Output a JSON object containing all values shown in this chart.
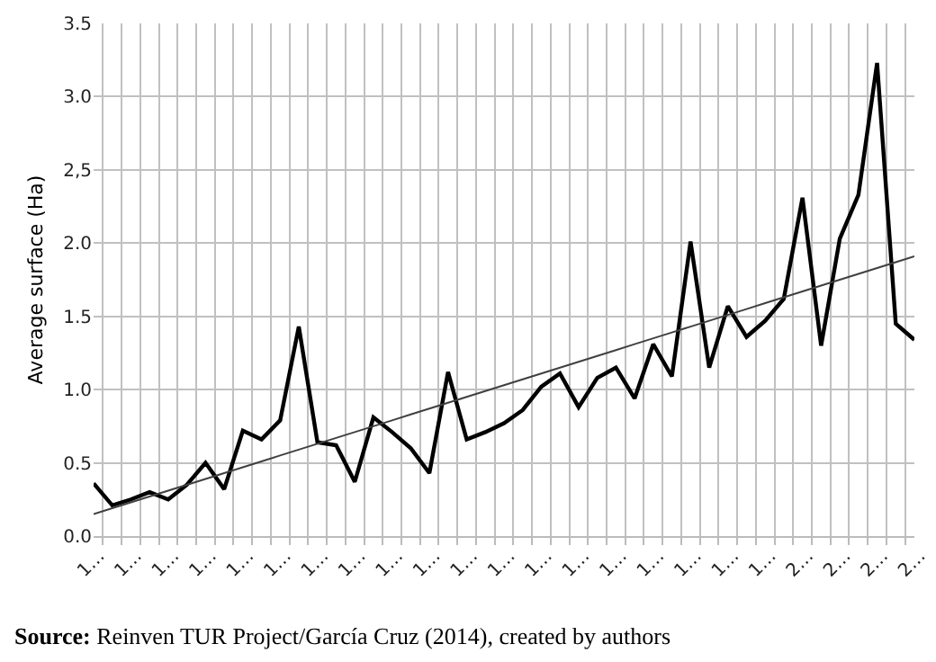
{
  "chart_data": {
    "type": "line",
    "ylabel": "Average surface (Ha)",
    "categories": [
      "1…",
      null,
      "1…",
      null,
      "1…",
      null,
      "1…",
      null,
      "1…",
      null,
      "1…",
      null,
      "1…",
      null,
      "1…",
      null,
      "1…",
      null,
      "1…",
      null,
      "1…",
      null,
      "1…",
      null,
      "1…",
      null,
      "1…",
      null,
      "1…",
      null,
      "1…",
      null,
      "1…",
      null,
      "1…",
      null,
      "1…",
      null,
      "2…",
      null,
      "2…",
      null,
      "2…",
      null,
      "2…"
    ],
    "series": [
      {
        "color": "#000000",
        "values": [
          0.36,
          0.21,
          0.25,
          0.3,
          0.25,
          0.35,
          0.5,
          0.32,
          0.72,
          0.66,
          0.79,
          1.43,
          0.64,
          0.62,
          0.37,
          0.81,
          0.71,
          0.6,
          0.43,
          1.12,
          0.66,
          0.71,
          0.77,
          0.86,
          1.02,
          1.11,
          0.88,
          1.08,
          1.15,
          0.94,
          1.31,
          1.09,
          2.01,
          1.15,
          1.57,
          1.36,
          1.47,
          1.62,
          2.31,
          1.3,
          2.03,
          2.33,
          3.23,
          1.45,
          1.34
        ]
      },
      {
        "type": "line",
        "color": "#404040",
        "values": [
          0.15,
          0.19,
          0.23,
          0.27,
          0.31,
          0.35,
          0.39,
          0.43,
          0.47,
          0.51,
          0.55,
          0.59,
          0.63,
          0.67,
          0.71,
          0.75,
          0.79,
          0.83,
          0.87,
          0.91,
          0.95,
          0.99,
          1.03,
          1.07,
          1.11,
          1.15,
          1.19,
          1.23,
          1.27,
          1.31,
          1.35,
          1.39,
          1.43,
          1.47,
          1.51,
          1.55,
          1.59,
          1.63,
          1.67,
          1.71,
          1.75,
          1.79,
          1.83,
          1.87,
          1.91
        ]
      }
    ],
    "ylim": [
      0,
      3.5
    ],
    "yticks": [
      {
        "value": 0,
        "label": "0.0"
      },
      {
        "value": 0.5,
        "label": "0.5"
      },
      {
        "value": 1,
        "label": "1.0"
      },
      {
        "value": 1.5,
        "label": "1.5"
      },
      {
        "value": 2,
        "label": "2.0"
      },
      {
        "value": 2.5,
        "label": "2,5"
      },
      {
        "value": 3,
        "label": "3.0"
      },
      {
        "value": 3.5,
        "label": "3.5"
      }
    ],
    "grid": true,
    "marker": "none",
    "line_style": "solid",
    "annotations": [
      "Source: Reinven TUR Project/García Cruz (2014), created by authors"
    ]
  }
}
